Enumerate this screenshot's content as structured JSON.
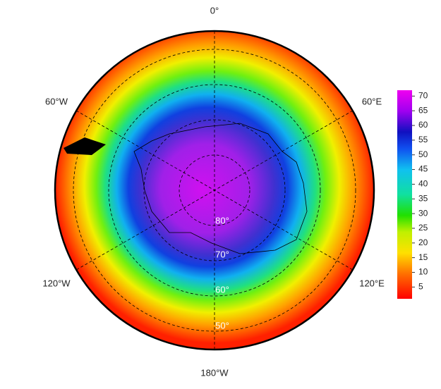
{
  "map": {
    "longitude_labels": [
      "0°",
      "60°E",
      "120°E",
      "180°W",
      "120°W",
      "60°W"
    ],
    "latitude_labels": [
      "80°",
      "70°",
      "60°",
      "50°"
    ]
  },
  "colorbar": {
    "lim": [
      1,
      72
    ],
    "ticks": [
      5,
      10,
      15,
      20,
      25,
      30,
      35,
      40,
      45,
      50,
      55,
      60,
      65,
      70
    ]
  }
}
